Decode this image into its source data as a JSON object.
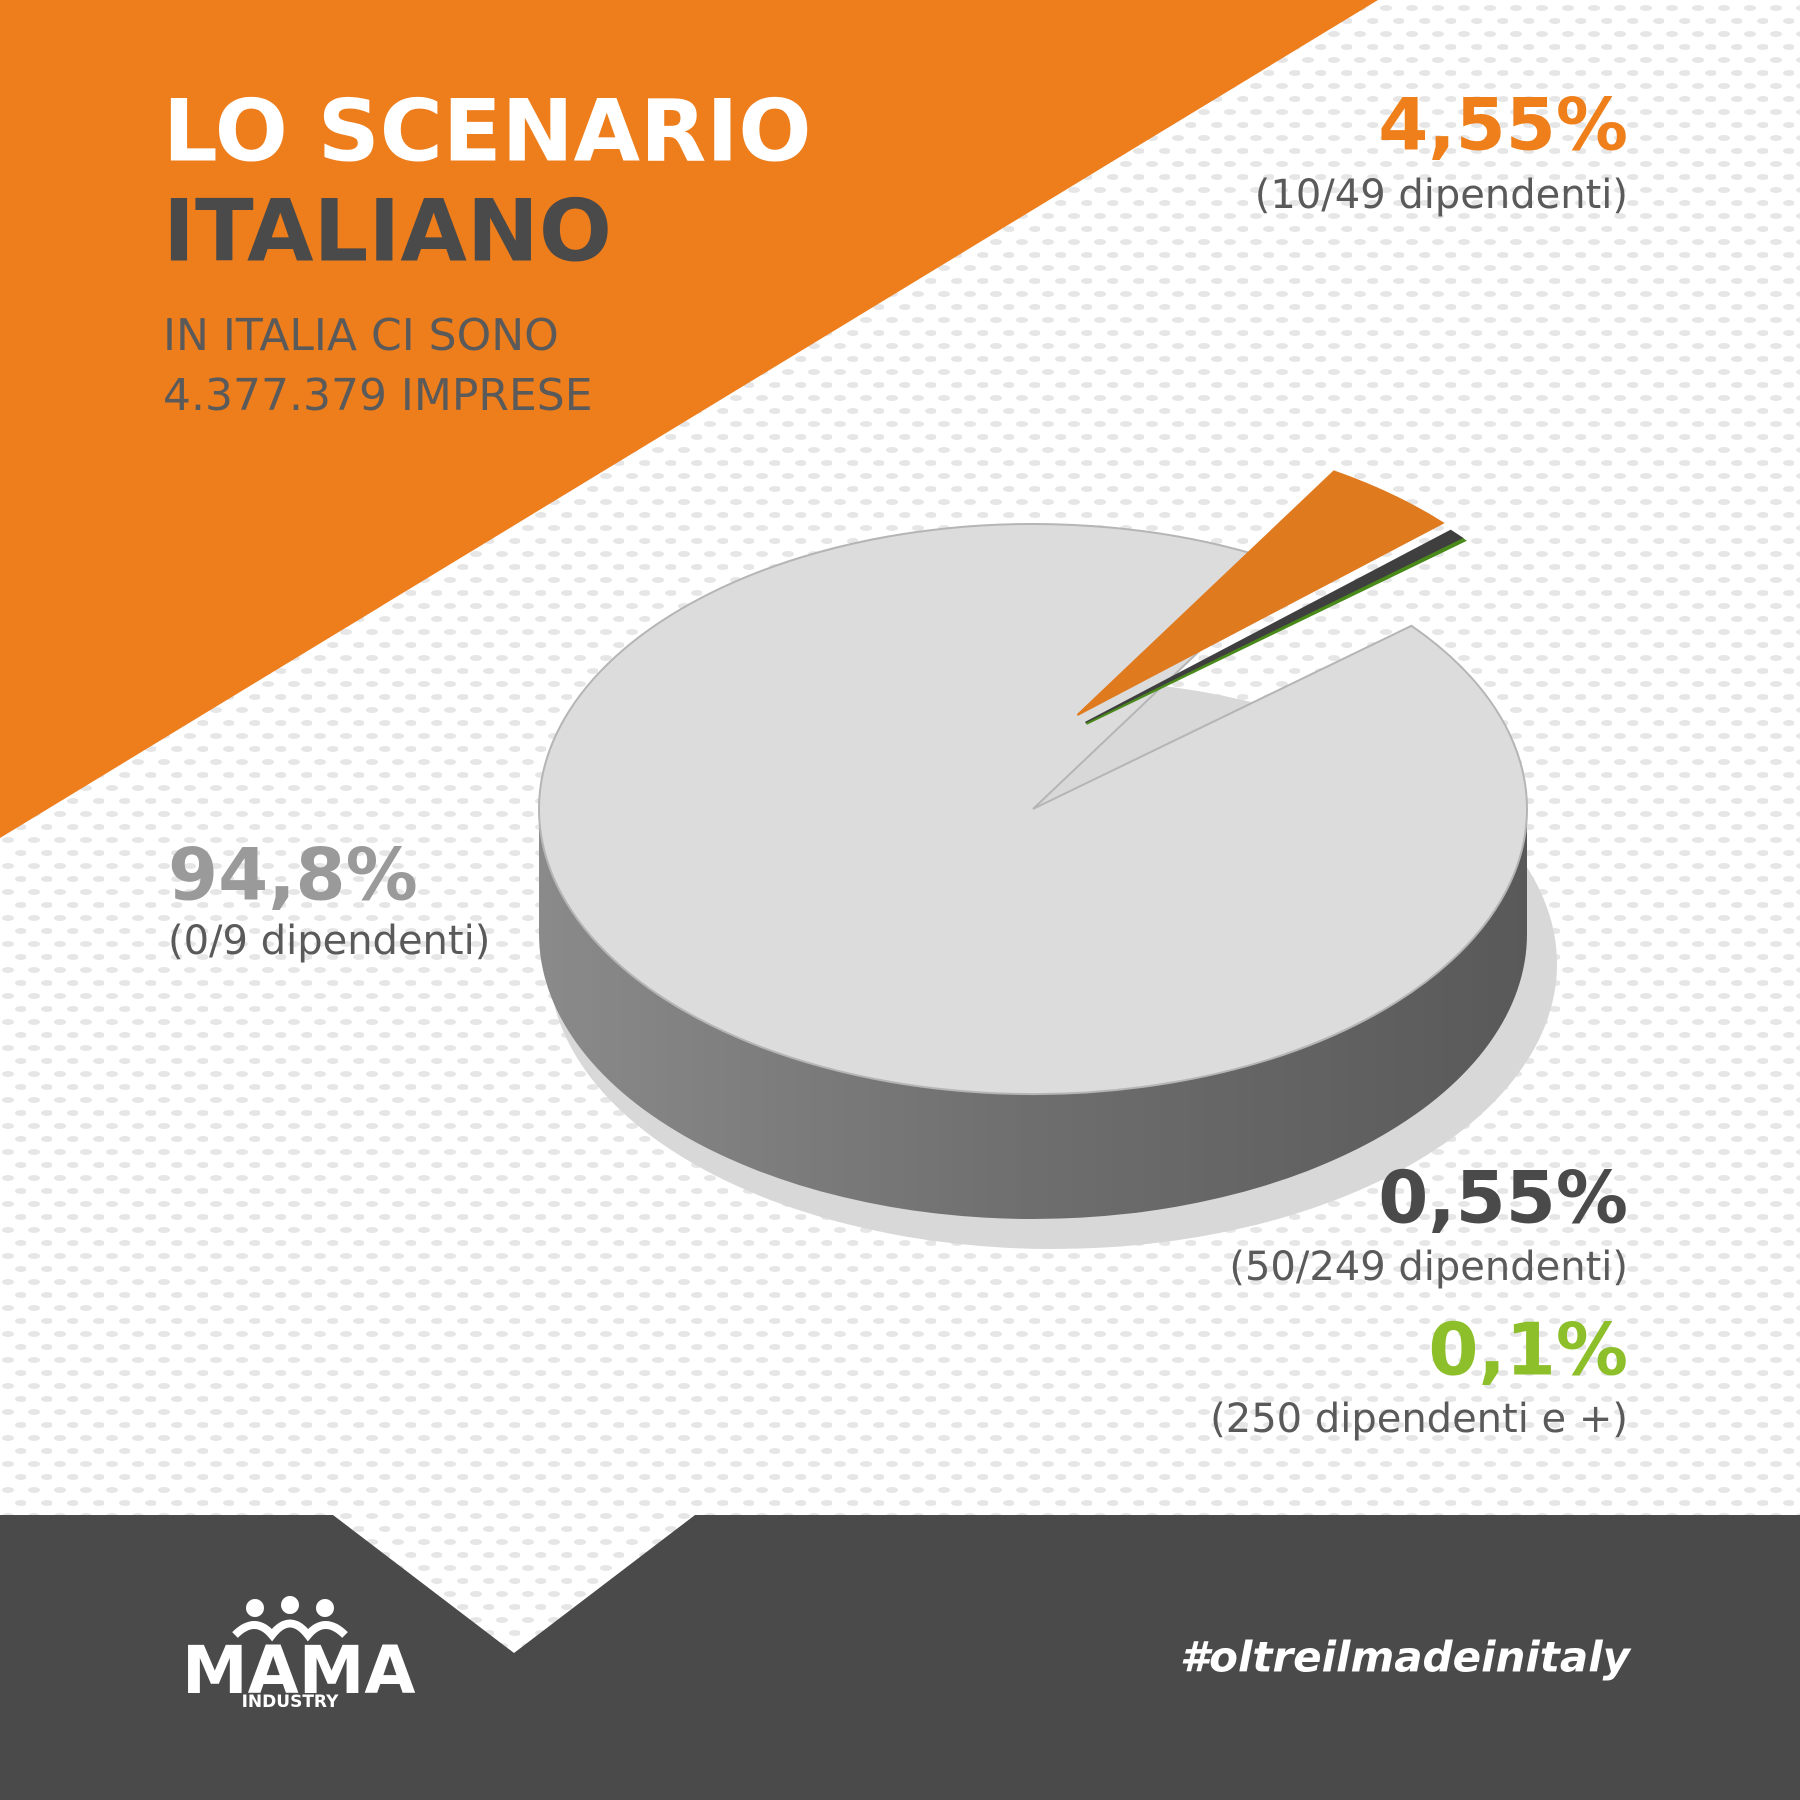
{
  "header": {
    "title_line1": "LO SCENARIO",
    "title_line2": "ITALIANO",
    "subtitle_line1": "IN ITALIA CI SONO",
    "subtitle_line2": "4.377.379 IMPRESE"
  },
  "chart_data": {
    "type": "pie",
    "categories": [
      "(0/9 dipendenti)",
      "(10/49 dipendenti)",
      "(50/249 dipendenti)",
      "(250 dipendenti e +)"
    ],
    "values": [
      94.8,
      4.55,
      0.55,
      0.1
    ],
    "value_labels": [
      "94,8%",
      "4,55%",
      "0,55%",
      "0,1%"
    ],
    "colors": [
      "#dcdcdc",
      "#e07a1f",
      "#3f3f3f",
      "#4a8a1a"
    ],
    "label_colors": [
      "#9a9a9a",
      "#ef7f1a",
      "#4a4a4a",
      "#8dbf2a"
    ]
  },
  "footer": {
    "logo": "MAMA",
    "logo_sub": "INDUSTRY",
    "hashtag": "#oltreilmadeinitaly"
  }
}
